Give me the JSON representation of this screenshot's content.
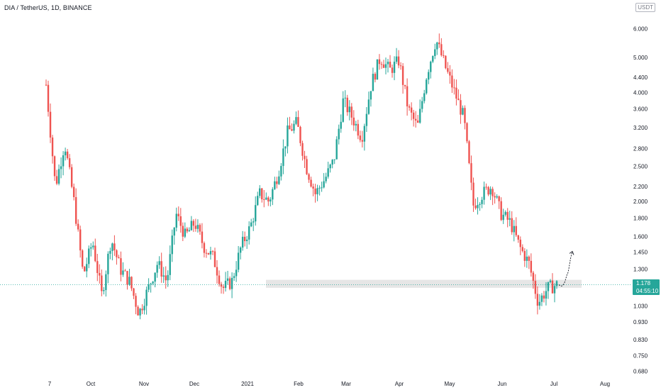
{
  "header": {
    "title": "DIA / TetherUS, 1D, BINANCE",
    "currency": "USDT"
  },
  "price_label": {
    "price": "1.178",
    "countdown": "04:55:10"
  },
  "colors": {
    "up": "#26a69a",
    "down": "#ef5350",
    "support_zone": "#e6e6e6",
    "price_line": "#26a69a",
    "arrow": "#131722"
  },
  "chart_data": {
    "type": "candlestick",
    "scale": "log",
    "ylim": [
      0.66,
      7.2
    ],
    "y_ticks": [
      "6.000",
      "5.000",
      "4.400",
      "4.000",
      "3.600",
      "3.200",
      "2.800",
      "2.500",
      "2.200",
      "2.000",
      "1.800",
      "1.600",
      "1.450",
      "1.300",
      "1.030",
      "0.930",
      "0.830",
      "0.750",
      "0.680"
    ],
    "x_ticks": [
      "7",
      "Oct",
      "Nov",
      "Dec",
      "2021",
      "Feb",
      "Mar",
      "Apr",
      "May",
      "Jun",
      "Jul",
      "Aug"
    ],
    "last_price": 1.178,
    "support_zone": [
      1.155,
      1.215
    ],
    "price_path": [
      [
        "7",
        4.2
      ],
      [
        "7",
        2.2
      ],
      [
        "7",
        2.9
      ],
      [
        "7",
        2.0
      ],
      [
        "Oct",
        1.25
      ],
      [
        "Oct",
        1.55
      ],
      [
        "Oct",
        1.1
      ],
      [
        "Oct",
        1.58
      ],
      [
        "Oct",
        1.3
      ],
      [
        "Nov",
        1.2
      ],
      [
        "Nov",
        0.98
      ],
      [
        "Nov",
        1.15
      ],
      [
        "Nov",
        1.35
      ],
      [
        "Nov",
        1.2
      ],
      [
        "Dec",
        1.85
      ],
      [
        "Dec",
        1.6
      ],
      [
        "Dec",
        1.75
      ],
      [
        "Dec",
        1.5
      ],
      [
        "Dec",
        1.4
      ],
      [
        "Dec",
        1.15
      ],
      [
        "2021",
        1.2
      ],
      [
        "2021",
        1.5
      ],
      [
        "2021",
        1.7
      ],
      [
        "2021",
        2.1
      ],
      [
        "Feb",
        2.0
      ],
      [
        "Feb",
        2.4
      ],
      [
        "Feb",
        3.1
      ],
      [
        "Feb",
        3.3
      ],
      [
        "Feb",
        2.5
      ],
      [
        "Mar",
        2.1
      ],
      [
        "Mar",
        2.3
      ],
      [
        "Mar",
        2.6
      ],
      [
        "Mar",
        3.8
      ],
      [
        "Mar",
        3.4
      ],
      [
        "Mar",
        3.0
      ],
      [
        "Apr",
        4.2
      ],
      [
        "Apr",
        5.0
      ],
      [
        "Apr",
        4.6
      ],
      [
        "Apr",
        4.9
      ],
      [
        "Apr",
        3.6
      ],
      [
        "Apr",
        3.2
      ],
      [
        "May",
        4.5
      ],
      [
        "May",
        5.6
      ],
      [
        "May",
        4.7
      ],
      [
        "May",
        4.0
      ],
      [
        "May",
        3.4
      ],
      [
        "May",
        1.95
      ],
      [
        "Jun",
        2.1
      ],
      [
        "Jun",
        2.2
      ],
      [
        "Jun",
        1.85
      ],
      [
        "Jun",
        1.75
      ],
      [
        "Jun",
        1.5
      ],
      [
        "Jun",
        1.35
      ],
      [
        "Jul",
        1.05
      ],
      [
        "Jul",
        1.15
      ],
      [
        "Jul",
        1.178
      ]
    ],
    "projection": [
      1.178,
      1.25,
      1.45
    ]
  }
}
